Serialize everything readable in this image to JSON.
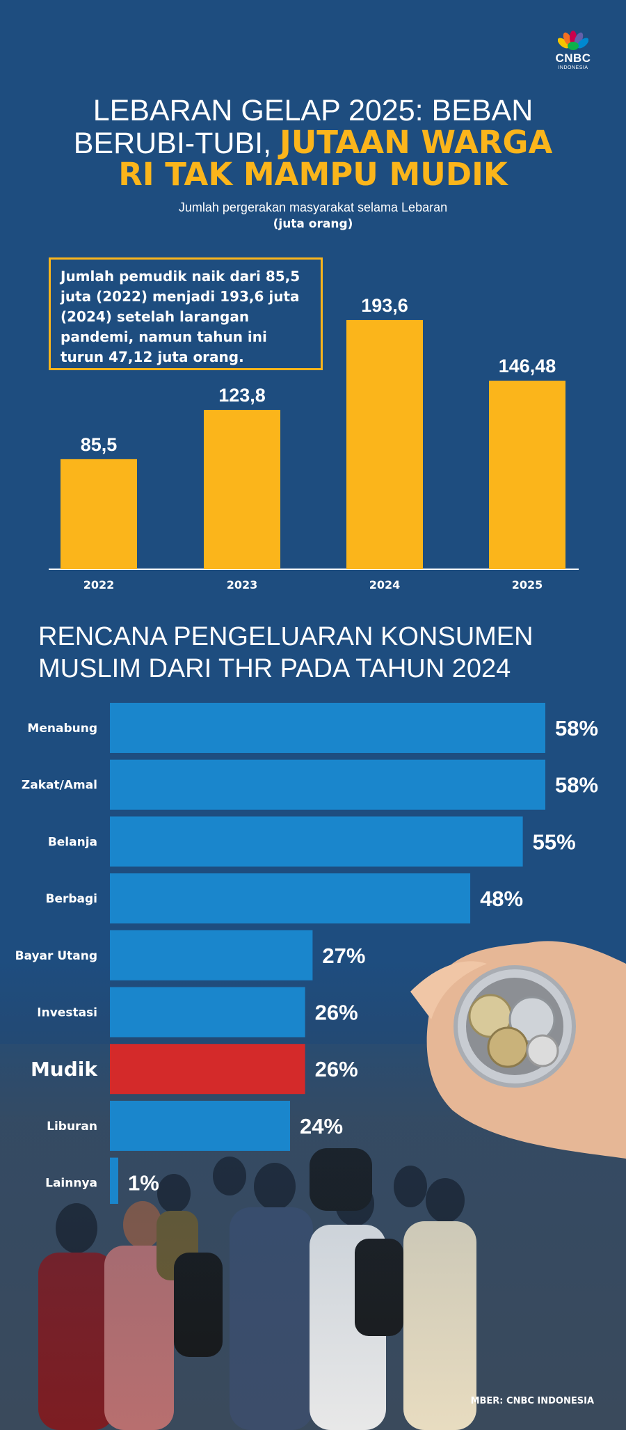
{
  "header": {
    "logo_text": "CNBC",
    "logo_sub": "INDONESIA",
    "title_line1": "LEBARAN GELAP 2025: BEBAN",
    "title_line2_white": "BERUBI-TUBI, ",
    "title_line2_yellow": "JUTAAN WARGA",
    "title_line3": "RI TAK MAMPU MUDIK",
    "subtitle": "Jumlah pergerakan masyarakat selama Lebaran",
    "unit": "(juta orang)"
  },
  "callout": {
    "text": "Jumlah pemudik naik dari 85,5 juta (2022) menjadi 193,6 juta (2024) setelah larangan pandemi, namun tahun ini turun 47,12 juta orang."
  },
  "section2": {
    "title_line1": "RENCANA PENGELUARAN KONSUMEN",
    "title_line2": "MUSLIM DARI THR PADA TAHUN 2024"
  },
  "source": "MBER: CNBC INDONESIA",
  "colors": {
    "background": "#1e4d7f",
    "accent_yellow": "#fbb51b",
    "bar_blue": "#1a86cc",
    "highlight_red": "#d42a2a"
  },
  "chart_data": [
    {
      "type": "bar",
      "categories": [
        "2022",
        "2023",
        "2024",
        "2025"
      ],
      "values": [
        85.5,
        123.8,
        193.6,
        146.48
      ],
      "value_labels": [
        "85,5",
        "123,8",
        "193,6",
        "146,48"
      ],
      "ylim": [
        0,
        200
      ],
      "grid": false
    },
    {
      "type": "bar",
      "orientation": "horizontal",
      "categories": [
        "Menabung",
        "Zakat/Amal",
        "Belanja",
        "Berbagi",
        "Bayar Utang",
        "Investasi",
        "Mudik",
        "Liburan",
        "Lainnya"
      ],
      "values": [
        58,
        58,
        55,
        48,
        27,
        26,
        26,
        24,
        1
      ],
      "value_labels": [
        "58%",
        "58%",
        "55%",
        "48%",
        "27%",
        "26%",
        "26%",
        "24%",
        "1%"
      ],
      "highlight": "Mudik",
      "xlim": [
        0,
        58
      ],
      "grid": false
    }
  ]
}
